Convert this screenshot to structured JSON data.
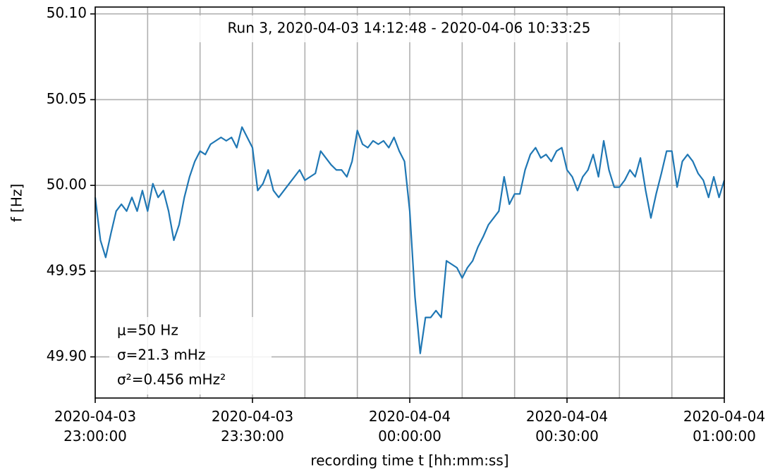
{
  "chart_data": {
    "type": "line",
    "title": "Run 3, 2020-04-03 14:12:48 - 2020-04-06 10:33:25",
    "xlabel": "recording time t [hh:mm:ss]",
    "ylabel": "f [Hz]",
    "annotations": [
      "μ=50 Hz",
      "σ=21.3 mHz",
      "σ²=0.456 mHz²"
    ],
    "grid": true,
    "x": [
      "2020-04-03 23:00:00",
      "2020-04-03 23:01:00",
      "2020-04-03 23:02:00",
      "2020-04-03 23:03:00",
      "2020-04-03 23:04:00",
      "2020-04-03 23:05:00",
      "2020-04-03 23:06:00",
      "2020-04-03 23:07:00",
      "2020-04-03 23:08:00",
      "2020-04-03 23:09:00",
      "2020-04-03 23:10:00",
      "2020-04-03 23:11:00",
      "2020-04-03 23:12:00",
      "2020-04-03 23:13:00",
      "2020-04-03 23:14:00",
      "2020-04-03 23:15:00",
      "2020-04-03 23:16:00",
      "2020-04-03 23:17:00",
      "2020-04-03 23:18:00",
      "2020-04-03 23:19:00",
      "2020-04-03 23:20:00",
      "2020-04-03 23:21:00",
      "2020-04-03 23:22:00",
      "2020-04-03 23:23:00",
      "2020-04-03 23:24:00",
      "2020-04-03 23:25:00",
      "2020-04-03 23:26:00",
      "2020-04-03 23:27:00",
      "2020-04-03 23:28:00",
      "2020-04-03 23:29:00",
      "2020-04-03 23:30:00",
      "2020-04-03 23:31:00",
      "2020-04-03 23:32:00",
      "2020-04-03 23:33:00",
      "2020-04-03 23:34:00",
      "2020-04-03 23:35:00",
      "2020-04-03 23:36:00",
      "2020-04-03 23:37:00",
      "2020-04-03 23:38:00",
      "2020-04-03 23:39:00",
      "2020-04-03 23:40:00",
      "2020-04-03 23:41:00",
      "2020-04-03 23:42:00",
      "2020-04-03 23:43:00",
      "2020-04-03 23:44:00",
      "2020-04-03 23:45:00",
      "2020-04-03 23:46:00",
      "2020-04-03 23:47:00",
      "2020-04-03 23:48:00",
      "2020-04-03 23:49:00",
      "2020-04-03 23:50:00",
      "2020-04-03 23:51:00",
      "2020-04-03 23:52:00",
      "2020-04-03 23:53:00",
      "2020-04-03 23:54:00",
      "2020-04-03 23:55:00",
      "2020-04-03 23:56:00",
      "2020-04-03 23:57:00",
      "2020-04-03 23:58:00",
      "2020-04-03 23:59:00",
      "2020-04-04 00:00:00",
      "2020-04-04 00:01:00",
      "2020-04-04 00:02:00",
      "2020-04-04 00:03:00",
      "2020-04-04 00:04:00",
      "2020-04-04 00:05:00",
      "2020-04-04 00:06:00",
      "2020-04-04 00:07:00",
      "2020-04-04 00:08:00",
      "2020-04-04 00:09:00",
      "2020-04-04 00:10:00",
      "2020-04-04 00:11:00",
      "2020-04-04 00:12:00",
      "2020-04-04 00:13:00",
      "2020-04-04 00:14:00",
      "2020-04-04 00:15:00",
      "2020-04-04 00:16:00",
      "2020-04-04 00:17:00",
      "2020-04-04 00:18:00",
      "2020-04-04 00:19:00",
      "2020-04-04 00:20:00",
      "2020-04-04 00:21:00",
      "2020-04-04 00:22:00",
      "2020-04-04 00:23:00",
      "2020-04-04 00:24:00",
      "2020-04-04 00:25:00",
      "2020-04-04 00:26:00",
      "2020-04-04 00:27:00",
      "2020-04-04 00:28:00",
      "2020-04-04 00:29:00",
      "2020-04-04 00:30:00",
      "2020-04-04 00:31:00",
      "2020-04-04 00:32:00",
      "2020-04-04 00:33:00",
      "2020-04-04 00:34:00",
      "2020-04-04 00:35:00",
      "2020-04-04 00:36:00",
      "2020-04-04 00:37:00",
      "2020-04-04 00:38:00",
      "2020-04-04 00:39:00",
      "2020-04-04 00:40:00",
      "2020-04-04 00:41:00",
      "2020-04-04 00:42:00",
      "2020-04-04 00:43:00",
      "2020-04-04 00:44:00",
      "2020-04-04 00:45:00",
      "2020-04-04 00:46:00",
      "2020-04-04 00:47:00",
      "2020-04-04 00:48:00",
      "2020-04-04 00:49:00",
      "2020-04-04 00:50:00",
      "2020-04-04 00:51:00",
      "2020-04-04 00:52:00",
      "2020-04-04 00:53:00",
      "2020-04-04 00:54:00",
      "2020-04-04 00:55:00",
      "2020-04-04 00:56:00",
      "2020-04-04 00:57:00",
      "2020-04-04 00:58:00",
      "2020-04-04 00:59:00",
      "2020-04-04 01:00:00"
    ],
    "series": [
      {
        "color": "#1f77b4",
        "values": [
          49.993,
          49.968,
          49.958,
          49.972,
          49.985,
          49.989,
          49.985,
          49.993,
          49.985,
          49.997,
          49.985,
          50.001,
          49.993,
          49.997,
          49.985,
          49.968,
          49.977,
          49.993,
          50.005,
          50.014,
          50.02,
          50.018,
          50.024,
          50.026,
          50.028,
          50.026,
          50.028,
          50.022,
          50.034,
          50.028,
          50.022,
          49.997,
          50.001,
          50.009,
          49.997,
          49.993,
          49.997,
          50.001,
          50.005,
          50.009,
          50.003,
          50.005,
          50.007,
          50.02,
          50.016,
          50.012,
          50.009,
          50.009,
          50.005,
          50.014,
          50.032,
          50.024,
          50.022,
          50.026,
          50.024,
          50.026,
          50.022,
          50.028,
          50.02,
          50.014,
          49.985,
          49.935,
          49.902,
          49.923,
          49.923,
          49.927,
          49.923,
          49.956,
          49.954,
          49.952,
          49.946,
          49.952,
          49.956,
          49.964,
          49.97,
          49.977,
          49.981,
          49.985,
          50.005,
          49.989,
          49.995,
          49.995,
          50.009,
          50.018,
          50.022,
          50.016,
          50.018,
          50.014,
          50.02,
          50.022,
          50.009,
          50.005,
          49.997,
          50.005,
          50.009,
          50.018,
          50.005,
          50.026,
          50.009,
          49.999,
          49.999,
          50.003,
          50.009,
          50.005,
          50.016,
          49.997,
          49.981,
          49.995,
          50.007,
          50.02,
          50.02,
          49.999,
          50.014,
          50.018,
          50.014,
          50.007,
          50.003,
          49.993,
          50.005,
          49.993,
          50.003
        ]
      }
    ],
    "xlim": [
      "2020-04-03 23:00:00",
      "2020-04-04 01:00:00"
    ],
    "xticks": [
      {
        "value": "2020-04-03 23:00:00",
        "label": "2020-04-03\n23:00:00"
      },
      {
        "value": "2020-04-03 23:30:00",
        "label": "2020-04-03\n23:30:00"
      },
      {
        "value": "2020-04-04 00:00:00",
        "label": "2020-04-04\n00:00:00"
      },
      {
        "value": "2020-04-04 00:30:00",
        "label": "2020-04-04\n00:30:00"
      },
      {
        "value": "2020-04-04 01:00:00",
        "label": "2020-04-04\n01:00:00"
      }
    ],
    "xgrid": [
      "2020-04-03 23:10:00",
      "2020-04-03 23:20:00",
      "2020-04-03 23:40:00",
      "2020-04-03 23:50:00",
      "2020-04-04 00:10:00",
      "2020-04-04 00:20:00",
      "2020-04-04 00:40:00",
      "2020-04-04 00:50:00"
    ],
    "ylim": [
      49.876,
      50.104
    ],
    "yticks": [
      {
        "value": 49.9,
        "label": "49.90"
      },
      {
        "value": 49.95,
        "label": "49.95"
      },
      {
        "value": 50,
        "label": "50.00"
      },
      {
        "value": 50.05,
        "label": "50.05"
      },
      {
        "value": 50.1,
        "label": "50.10"
      }
    ]
  }
}
